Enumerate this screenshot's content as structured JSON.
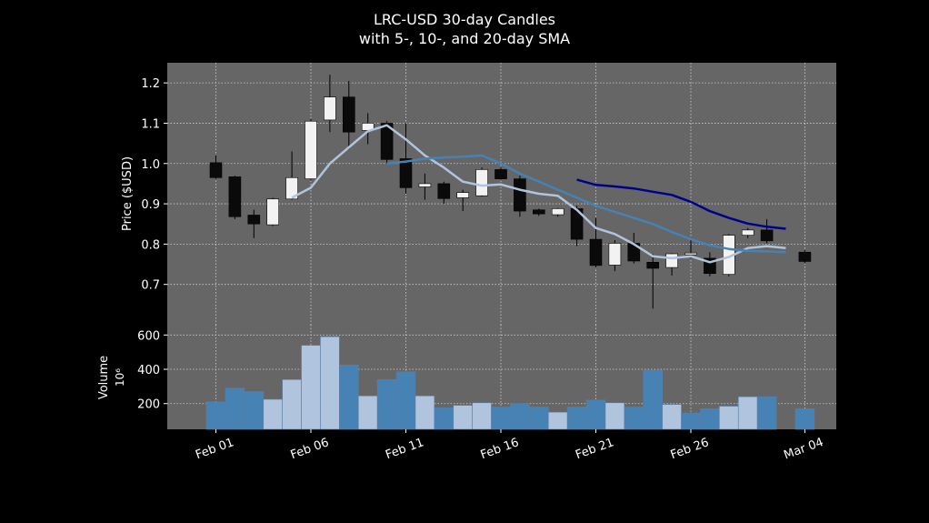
{
  "chart_data": {
    "type": "candlestick",
    "title": "LRC-USD 30-day Candles",
    "subtitle": "with 5-, 10-, and 20-day SMA",
    "price_axis": {
      "ylabel": "Price ($USD)",
      "ylim": [
        0.6,
        1.25
      ],
      "ticks": [
        0.7,
        0.8,
        0.9,
        1.0,
        1.1,
        1.2
      ],
      "tick_labels": [
        "0.7",
        "0.8",
        "0.9",
        "1.0",
        "1.1",
        "1.2"
      ]
    },
    "volume_axis": {
      "ylabel": "Volume",
      "unit_label": "10⁶",
      "ylim": [
        50,
        660
      ],
      "ticks": [
        200,
        400,
        600
      ],
      "tick_labels": [
        "200",
        "400",
        "600"
      ]
    },
    "x_axis": {
      "tick_days": [
        1,
        6,
        11,
        16,
        21,
        26,
        32
      ],
      "tick_labels": [
        "Feb 01",
        "Feb 06",
        "Feb 11",
        "Feb 16",
        "Feb 21",
        "Feb 26",
        "Mar 04"
      ]
    },
    "grid": true,
    "colors": {
      "background": "#000000",
      "plot_bg": "#666666",
      "grid": "#cfcfcf",
      "up": "#f2f2f2",
      "down": "#0a0a0a",
      "vol_up": "#b0c4de",
      "vol_down": "#4682b4",
      "sma5": "#b0c4de",
      "sma10": "#4682b4",
      "sma20": "#00008b"
    },
    "candles": [
      {
        "date": "Feb 01",
        "open": 1.002,
        "high": 1.02,
        "low": 0.962,
        "close": 0.965,
        "volume": 210
      },
      {
        "date": "Feb 02",
        "open": 0.967,
        "high": 0.97,
        "low": 0.862,
        "close": 0.868,
        "volume": 290
      },
      {
        "date": "Feb 03",
        "open": 0.872,
        "high": 0.885,
        "low": 0.815,
        "close": 0.85,
        "volume": 270
      },
      {
        "date": "Feb 04",
        "open": 0.848,
        "high": 0.915,
        "low": 0.845,
        "close": 0.912,
        "volume": 225
      },
      {
        "date": "Feb 05",
        "open": 0.912,
        "high": 1.03,
        "low": 0.91,
        "close": 0.965,
        "volume": 340
      },
      {
        "date": "Feb 06",
        "open": 0.962,
        "high": 1.11,
        "low": 0.958,
        "close": 1.105,
        "volume": 540
      },
      {
        "date": "Feb 07",
        "open": 1.108,
        "high": 1.22,
        "low": 1.078,
        "close": 1.165,
        "volume": 590
      },
      {
        "date": "Feb 08",
        "open": 1.165,
        "high": 1.205,
        "low": 1.035,
        "close": 1.078,
        "volume": 425
      },
      {
        "date": "Feb 09",
        "open": 1.082,
        "high": 1.125,
        "low": 1.048,
        "close": 1.1,
        "volume": 245
      },
      {
        "date": "Feb 10",
        "open": 1.1,
        "high": 1.105,
        "low": 1.0,
        "close": 1.01,
        "volume": 340
      },
      {
        "date": "Feb 11",
        "open": 1.012,
        "high": 1.1,
        "low": 0.925,
        "close": 0.94,
        "volume": 385
      },
      {
        "date": "Feb 12",
        "open": 0.942,
        "high": 0.975,
        "low": 0.91,
        "close": 0.95,
        "volume": 245
      },
      {
        "date": "Feb 13",
        "open": 0.95,
        "high": 0.955,
        "low": 0.9,
        "close": 0.913,
        "volume": 175
      },
      {
        "date": "Feb 14",
        "open": 0.915,
        "high": 0.935,
        "low": 0.882,
        "close": 0.928,
        "volume": 190
      },
      {
        "date": "Feb 15",
        "open": 0.92,
        "high": 0.99,
        "low": 0.918,
        "close": 0.985,
        "volume": 205
      },
      {
        "date": "Feb 16",
        "open": 0.985,
        "high": 0.99,
        "low": 0.96,
        "close": 0.962,
        "volume": 180
      },
      {
        "date": "Feb 17",
        "open": 0.962,
        "high": 0.97,
        "low": 0.868,
        "close": 0.882,
        "volume": 200
      },
      {
        "date": "Feb 18",
        "open": 0.885,
        "high": 0.888,
        "low": 0.87,
        "close": 0.875,
        "volume": 180
      },
      {
        "date": "Feb 19",
        "open": 0.873,
        "high": 0.89,
        "low": 0.868,
        "close": 0.888,
        "volume": 150
      },
      {
        "date": "Feb 20",
        "open": 0.888,
        "high": 0.895,
        "low": 0.795,
        "close": 0.812,
        "volume": 180
      },
      {
        "date": "Feb 21",
        "open": 0.812,
        "high": 0.865,
        "low": 0.742,
        "close": 0.747,
        "volume": 220
      },
      {
        "date": "Feb 22",
        "open": 0.748,
        "high": 0.81,
        "low": 0.733,
        "close": 0.802,
        "volume": 205
      },
      {
        "date": "Feb 23",
        "open": 0.802,
        "high": 0.828,
        "low": 0.752,
        "close": 0.758,
        "volume": 180
      },
      {
        "date": "Feb 24",
        "open": 0.755,
        "high": 0.775,
        "low": 0.64,
        "close": 0.74,
        "volume": 395
      },
      {
        "date": "Feb 25",
        "open": 0.742,
        "high": 0.778,
        "low": 0.722,
        "close": 0.776,
        "volume": 195
      },
      {
        "date": "Feb 26",
        "open": 0.776,
        "high": 0.815,
        "low": 0.765,
        "close": 0.778,
        "volume": 145
      },
      {
        "date": "Feb 27",
        "open": 0.765,
        "high": 0.78,
        "low": 0.72,
        "close": 0.727,
        "volume": 170
      },
      {
        "date": "Feb 28",
        "open": 0.725,
        "high": 0.825,
        "low": 0.72,
        "close": 0.822,
        "volume": 185
      },
      {
        "date": "Mar 01",
        "open": 0.822,
        "high": 0.84,
        "low": 0.815,
        "close": 0.835,
        "volume": 240
      },
      {
        "date": "Mar 02",
        "open": 0.835,
        "high": 0.862,
        "low": 0.802,
        "close": 0.808,
        "volume": 240
      },
      {
        "date": "Mar 04",
        "open": 0.78,
        "high": 0.785,
        "low": 0.752,
        "close": 0.757,
        "volume": 170
      }
    ],
    "volume_directions": [
      "down",
      "down",
      "down",
      "up",
      "up",
      "up",
      "up",
      "down",
      "up",
      "down",
      "down",
      "up",
      "down",
      "up",
      "up",
      "down",
      "down",
      "down",
      "up",
      "down",
      "down",
      "up",
      "down",
      "down",
      "up",
      "down",
      "down",
      "up",
      "up",
      "down",
      "down"
    ],
    "series": [
      {
        "key": "sma5",
        "start_index": 4,
        "values": [
          0.915,
          0.94,
          1.0,
          1.04,
          1.08,
          1.095,
          1.06,
          1.02,
          0.99,
          0.955,
          0.945,
          0.948,
          0.935,
          0.925,
          0.92,
          0.885,
          0.84,
          0.825,
          0.8,
          0.77,
          0.765,
          0.77,
          0.755,
          0.768,
          0.79,
          0.795,
          0.79
        ]
      },
      {
        "key": "sma10",
        "start_index": 9,
        "values": [
          1.0,
          1.005,
          1.012,
          1.015,
          1.017,
          1.02,
          1.0,
          0.975,
          0.955,
          0.935,
          0.915,
          0.895,
          0.88,
          0.865,
          0.85,
          0.83,
          0.812,
          0.797,
          0.788,
          0.783,
          0.782,
          0.78
        ]
      },
      {
        "key": "sma20",
        "start_index": 19,
        "values": [
          0.96,
          0.947,
          0.943,
          0.938,
          0.93,
          0.922,
          0.905,
          0.882,
          0.865,
          0.851,
          0.843,
          0.838
        ]
      }
    ]
  }
}
